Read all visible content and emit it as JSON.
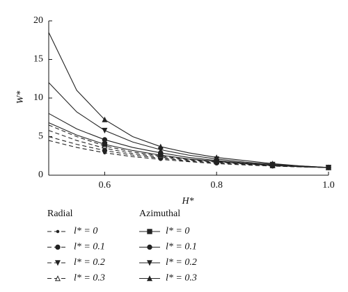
{
  "chart_data": {
    "type": "line",
    "x_label": "H*",
    "y_label": "W*",
    "x": [
      0.5,
      0.55,
      0.6,
      0.65,
      0.7,
      0.75,
      0.8,
      0.85,
      0.9,
      0.95,
      1.0
    ],
    "xlim": [
      0.5,
      1.0
    ],
    "xticks": [
      0.6,
      0.8,
      {
        "value": 1.0,
        "label": "1.0"
      }
    ],
    "ylim": [
      0,
      20
    ],
    "yticks": [
      0,
      5,
      10,
      15,
      20
    ],
    "groups": [
      {
        "title": "Radial",
        "dash": true,
        "series": [
          {
            "name": "l* = 0",
            "color": "#222",
            "marker": "dot",
            "values": [
              4.5,
              3.6,
              2.9,
              2.4,
              2.05,
              1.75,
              1.5,
              1.33,
              1.18,
              1.07,
              1.0
            ]
          },
          {
            "name": "l* = 0.1",
            "color": "#222",
            "marker": "circle",
            "values": [
              5.0,
              4.0,
              3.2,
              2.6,
              2.2,
              1.85,
              1.6,
              1.4,
              1.2,
              1.08,
              1.0
            ]
          },
          {
            "name": "l* = 0.2",
            "color": "#222",
            "marker": "tri-down",
            "values": [
              5.8,
              4.5,
              3.5,
              2.8,
              2.35,
              1.95,
              1.7,
              1.45,
              1.25,
              1.1,
              1.0
            ]
          },
          {
            "name": "l* = 0.3",
            "color": "#222",
            "marker": "tri-up-open",
            "values": [
              6.5,
              5.0,
              3.8,
              3.0,
              2.5,
              2.05,
              1.75,
              1.5,
              1.25,
              1.1,
              1.0
            ]
          }
        ]
      },
      {
        "title": "Azimuthal",
        "dash": false,
        "series": [
          {
            "name": "l* = 0",
            "color": "#222",
            "marker": "square",
            "values": [
              6.8,
              5.2,
              4.0,
              3.2,
              2.6,
              2.1,
              1.8,
              1.5,
              1.3,
              1.1,
              1.0
            ]
          },
          {
            "name": "l* = 0.1",
            "color": "#222",
            "marker": "circle",
            "values": [
              8.0,
              6.0,
              4.6,
              3.6,
              2.9,
              2.3,
              1.9,
              1.6,
              1.3,
              1.1,
              1.0
            ]
          },
          {
            "name": "l* = 0.2",
            "color": "#222",
            "marker": "tri-down",
            "values": [
              12.0,
              8.2,
              5.8,
              4.3,
              3.3,
              2.6,
              2.1,
              1.7,
              1.4,
              1.2,
              1.0
            ]
          },
          {
            "name": "l* = 0.3",
            "color": "#222",
            "marker": "tri-up",
            "values": [
              18.5,
              11.0,
              7.2,
              5.0,
              3.7,
              2.9,
              2.3,
              1.9,
              1.5,
              1.2,
              1.0
            ]
          }
        ]
      }
    ]
  }
}
